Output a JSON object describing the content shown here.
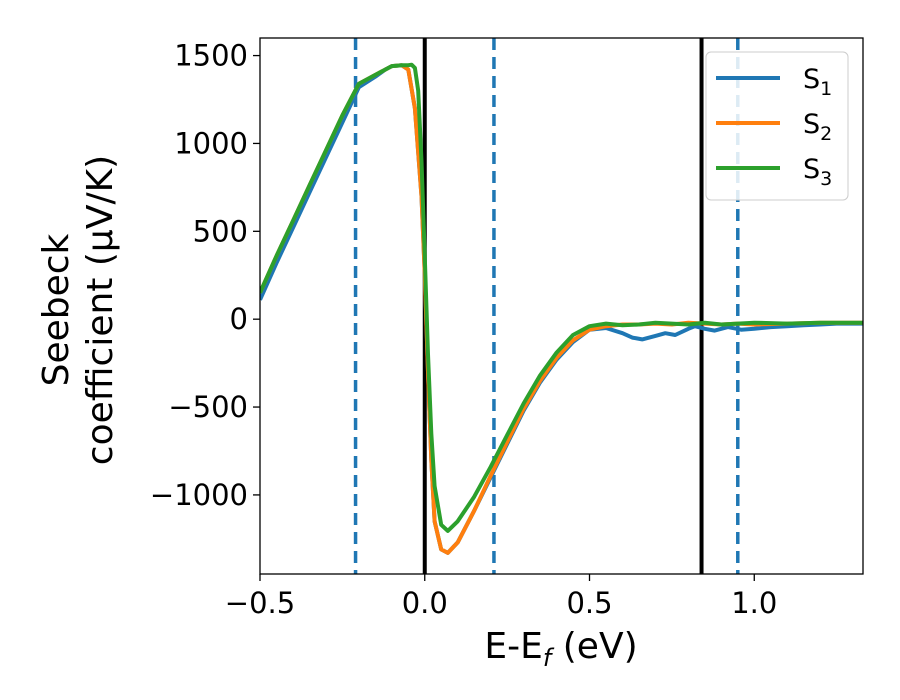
{
  "chart_data": {
    "type": "line",
    "title": "",
    "xlabel": "E-E_f (eV)",
    "xlabel_parts": [
      "E-E",
      "f",
      " (eV)"
    ],
    "ylabel": [
      "Seebeck",
      "coefficient  (μV/K)"
    ],
    "xlim": [
      -0.5,
      1.33
    ],
    "ylim": [
      -1450,
      1600
    ],
    "xticks": [
      -0.5,
      0.0,
      0.5,
      1.0
    ],
    "xtick_labels": [
      "−0.5",
      "0.0",
      "0.5",
      "1.0"
    ],
    "yticks": [
      -1000,
      -500,
      0,
      500,
      1000,
      1500
    ],
    "ytick_labels": [
      "−1000",
      "−500",
      "0",
      "500",
      "1000",
      "1500"
    ],
    "grid": false,
    "legend_position": "top-right",
    "series": [
      {
        "name": "S1",
        "legend_base": "S",
        "legend_sub": "1",
        "color": "#1f77b4",
        "points": [
          [
            -0.5,
            110
          ],
          [
            -0.45,
            320
          ],
          [
            -0.4,
            520
          ],
          [
            -0.35,
            720
          ],
          [
            -0.3,
            920
          ],
          [
            -0.25,
            1120
          ],
          [
            -0.2,
            1320
          ],
          [
            -0.15,
            1380
          ],
          [
            -0.12,
            1420
          ],
          [
            -0.1,
            1440
          ],
          [
            -0.07,
            1445
          ],
          [
            -0.05,
            1420
          ],
          [
            -0.03,
            1200
          ],
          [
            -0.01,
            700
          ],
          [
            0.0,
            250
          ],
          [
            0.01,
            -300
          ],
          [
            0.02,
            -800
          ],
          [
            0.03,
            -1150
          ],
          [
            0.05,
            -1310
          ],
          [
            0.07,
            -1330
          ],
          [
            0.1,
            -1270
          ],
          [
            0.15,
            -1090
          ],
          [
            0.2,
            -900
          ],
          [
            0.25,
            -710
          ],
          [
            0.3,
            -520
          ],
          [
            0.35,
            -360
          ],
          [
            0.4,
            -230
          ],
          [
            0.45,
            -130
          ],
          [
            0.5,
            -60
          ],
          [
            0.55,
            -50
          ],
          [
            0.6,
            -80
          ],
          [
            0.63,
            -105
          ],
          [
            0.66,
            -115
          ],
          [
            0.7,
            -95
          ],
          [
            0.73,
            -80
          ],
          [
            0.76,
            -90
          ],
          [
            0.8,
            -55
          ],
          [
            0.82,
            -40
          ],
          [
            0.85,
            -55
          ],
          [
            0.88,
            -65
          ],
          [
            0.92,
            -45
          ],
          [
            0.96,
            -60
          ],
          [
            1.0,
            -55
          ],
          [
            1.05,
            -45
          ],
          [
            1.1,
            -40
          ],
          [
            1.15,
            -35
          ],
          [
            1.2,
            -30
          ],
          [
            1.25,
            -25
          ],
          [
            1.33,
            -25
          ]
        ]
      },
      {
        "name": "S2",
        "legend_base": "S",
        "legend_sub": "2",
        "color": "#ff7f0e",
        "points": [
          [
            -0.5,
            150
          ],
          [
            -0.45,
            360
          ],
          [
            -0.4,
            560
          ],
          [
            -0.35,
            760
          ],
          [
            -0.3,
            960
          ],
          [
            -0.25,
            1160
          ],
          [
            -0.2,
            1340
          ],
          [
            -0.15,
            1390
          ],
          [
            -0.12,
            1420
          ],
          [
            -0.1,
            1440
          ],
          [
            -0.07,
            1445
          ],
          [
            -0.05,
            1420
          ],
          [
            -0.03,
            1200
          ],
          [
            -0.01,
            700
          ],
          [
            0.0,
            250
          ],
          [
            0.01,
            -300
          ],
          [
            0.02,
            -800
          ],
          [
            0.03,
            -1150
          ],
          [
            0.05,
            -1310
          ],
          [
            0.07,
            -1330
          ],
          [
            0.1,
            -1270
          ],
          [
            0.15,
            -1090
          ],
          [
            0.2,
            -890
          ],
          [
            0.25,
            -700
          ],
          [
            0.3,
            -510
          ],
          [
            0.35,
            -350
          ],
          [
            0.4,
            -220
          ],
          [
            0.45,
            -120
          ],
          [
            0.5,
            -60
          ],
          [
            0.55,
            -40
          ],
          [
            0.6,
            -30
          ],
          [
            0.65,
            -30
          ],
          [
            0.7,
            -25
          ],
          [
            0.75,
            -30
          ],
          [
            0.8,
            -20
          ],
          [
            0.85,
            -25
          ],
          [
            0.9,
            -30
          ],
          [
            0.95,
            -25
          ],
          [
            1.0,
            -30
          ],
          [
            1.1,
            -25
          ],
          [
            1.2,
            -20
          ],
          [
            1.33,
            -20
          ]
        ]
      },
      {
        "name": "S3",
        "legend_base": "S",
        "legend_sub": "3",
        "color": "#2ca02c",
        "points": [
          [
            -0.5,
            150
          ],
          [
            -0.45,
            360
          ],
          [
            -0.4,
            560
          ],
          [
            -0.35,
            760
          ],
          [
            -0.3,
            960
          ],
          [
            -0.25,
            1160
          ],
          [
            -0.2,
            1340
          ],
          [
            -0.15,
            1390
          ],
          [
            -0.12,
            1420
          ],
          [
            -0.1,
            1440
          ],
          [
            -0.07,
            1445
          ],
          [
            -0.05,
            1445
          ],
          [
            -0.04,
            1448
          ],
          [
            -0.03,
            1430
          ],
          [
            -0.02,
            1300
          ],
          [
            -0.01,
            900
          ],
          [
            0.0,
            350
          ],
          [
            0.01,
            -200
          ],
          [
            0.02,
            -650
          ],
          [
            0.03,
            -950
          ],
          [
            0.05,
            -1170
          ],
          [
            0.07,
            -1205
          ],
          [
            0.1,
            -1150
          ],
          [
            0.15,
            -1010
          ],
          [
            0.2,
            -840
          ],
          [
            0.25,
            -660
          ],
          [
            0.3,
            -480
          ],
          [
            0.35,
            -320
          ],
          [
            0.4,
            -190
          ],
          [
            0.45,
            -90
          ],
          [
            0.5,
            -40
          ],
          [
            0.55,
            -25
          ],
          [
            0.6,
            -35
          ],
          [
            0.65,
            -30
          ],
          [
            0.7,
            -20
          ],
          [
            0.75,
            -25
          ],
          [
            0.8,
            -30
          ],
          [
            0.85,
            -20
          ],
          [
            0.9,
            -30
          ],
          [
            0.95,
            -25
          ],
          [
            1.0,
            -20
          ],
          [
            1.1,
            -25
          ],
          [
            1.2,
            -20
          ],
          [
            1.33,
            -20
          ]
        ]
      }
    ],
    "vlines": [
      {
        "x": 0.0,
        "style": "solid",
        "color": "#000000"
      },
      {
        "x": 0.84,
        "style": "solid",
        "color": "#000000"
      },
      {
        "x": -0.21,
        "style": "dashed",
        "color": "#1f77b4"
      },
      {
        "x": 0.21,
        "style": "dashed",
        "color": "#1f77b4"
      },
      {
        "x": 0.95,
        "style": "dashed",
        "color": "#1f77b4"
      }
    ]
  }
}
